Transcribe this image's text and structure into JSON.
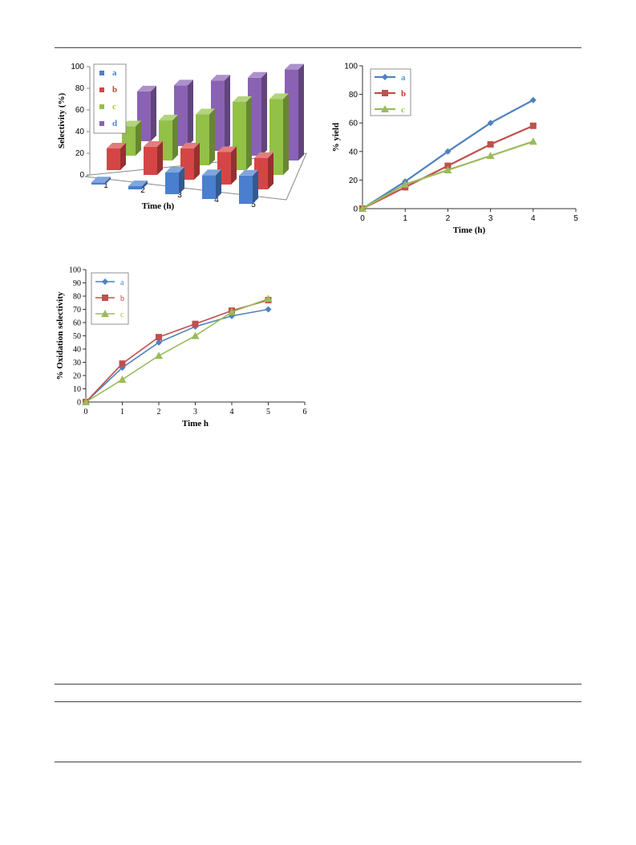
{
  "chart_data": [
    {
      "type": "bar",
      "variant": "3d-clustered",
      "title": "",
      "xlabel": "Time (h)",
      "ylabel": "Selectivity (%)",
      "ylim": [
        0,
        100
      ],
      "yticks": [
        "0",
        "20",
        "40",
        "60",
        "80",
        "100"
      ],
      "categories": [
        "1",
        "2",
        "3",
        "4",
        "5"
      ],
      "legend_position": "top-left",
      "series": [
        {
          "name": "a",
          "color": "#4a7fcf",
          "label_color": "#4a7fcf",
          "values": [
            2,
            3,
            20,
            22,
            26
          ]
        },
        {
          "name": "b",
          "color": "#d64545",
          "label_color": "#c0392b",
          "values": [
            20,
            26,
            29,
            30,
            29
          ]
        },
        {
          "name": "c",
          "color": "#93c047",
          "label_color": "#9acd32",
          "values": [
            27,
            37,
            47,
            63,
            70
          ]
        },
        {
          "name": "d",
          "color": "#8a62b3",
          "label_color": "#4a7fcf",
          "values": [
            46,
            56,
            65,
            72,
            84
          ]
        }
      ]
    },
    {
      "type": "line",
      "title": "",
      "xlabel": "Time (h)",
      "ylabel": "% yield",
      "xlim": [
        0,
        5
      ],
      "ylim": [
        0,
        100
      ],
      "xticks": [
        "0",
        "1",
        "2",
        "3",
        "4",
        "5"
      ],
      "yticks": [
        "0",
        "20",
        "40",
        "60",
        "80",
        "100"
      ],
      "legend_position": "top-left",
      "x": [
        0,
        1,
        2,
        3,
        4
      ],
      "series": [
        {
          "name": "a",
          "marker": "diamond",
          "color": "#4f81bd",
          "label_color": "#4a9fd8",
          "values": [
            0,
            19,
            40,
            60,
            76
          ]
        },
        {
          "name": "b",
          "marker": "square",
          "color": "#c0504d",
          "label_color": "#c0392b",
          "values": [
            0,
            15,
            30,
            45,
            58
          ]
        },
        {
          "name": "c",
          "marker": "triangle",
          "color": "#9bbb59",
          "label_color": "#9acd32",
          "values": [
            0,
            17,
            27,
            37,
            47
          ]
        }
      ]
    },
    {
      "type": "line",
      "title": "",
      "xlabel": "Time h",
      "ylabel": "% Oxidation selectivity",
      "xlim": [
        0,
        6
      ],
      "ylim": [
        0,
        100
      ],
      "xticks": [
        "0",
        "1",
        "2",
        "3",
        "4",
        "5",
        "6"
      ],
      "yticks": [
        "0",
        "10",
        "20",
        "30",
        "40",
        "50",
        "60",
        "70",
        "80",
        "90",
        "100"
      ],
      "legend_position": "top-left",
      "x": [
        0,
        1,
        2,
        3,
        4,
        5
      ],
      "series": [
        {
          "name": "a",
          "marker": "diamond",
          "color": "#4f81bd",
          "label_color": "#4a7fcf",
          "values": [
            0,
            26,
            45,
            57,
            65,
            70
          ]
        },
        {
          "name": "b",
          "marker": "square",
          "color": "#c0504d",
          "label_color": "#c0392b",
          "values": [
            0,
            29,
            49,
            59,
            69,
            77
          ]
        },
        {
          "name": "c",
          "marker": "triangle",
          "color": "#9bbb59",
          "label_color": "#9acd32",
          "values": [
            0,
            17,
            35,
            50,
            68,
            78
          ]
        }
      ]
    }
  ]
}
